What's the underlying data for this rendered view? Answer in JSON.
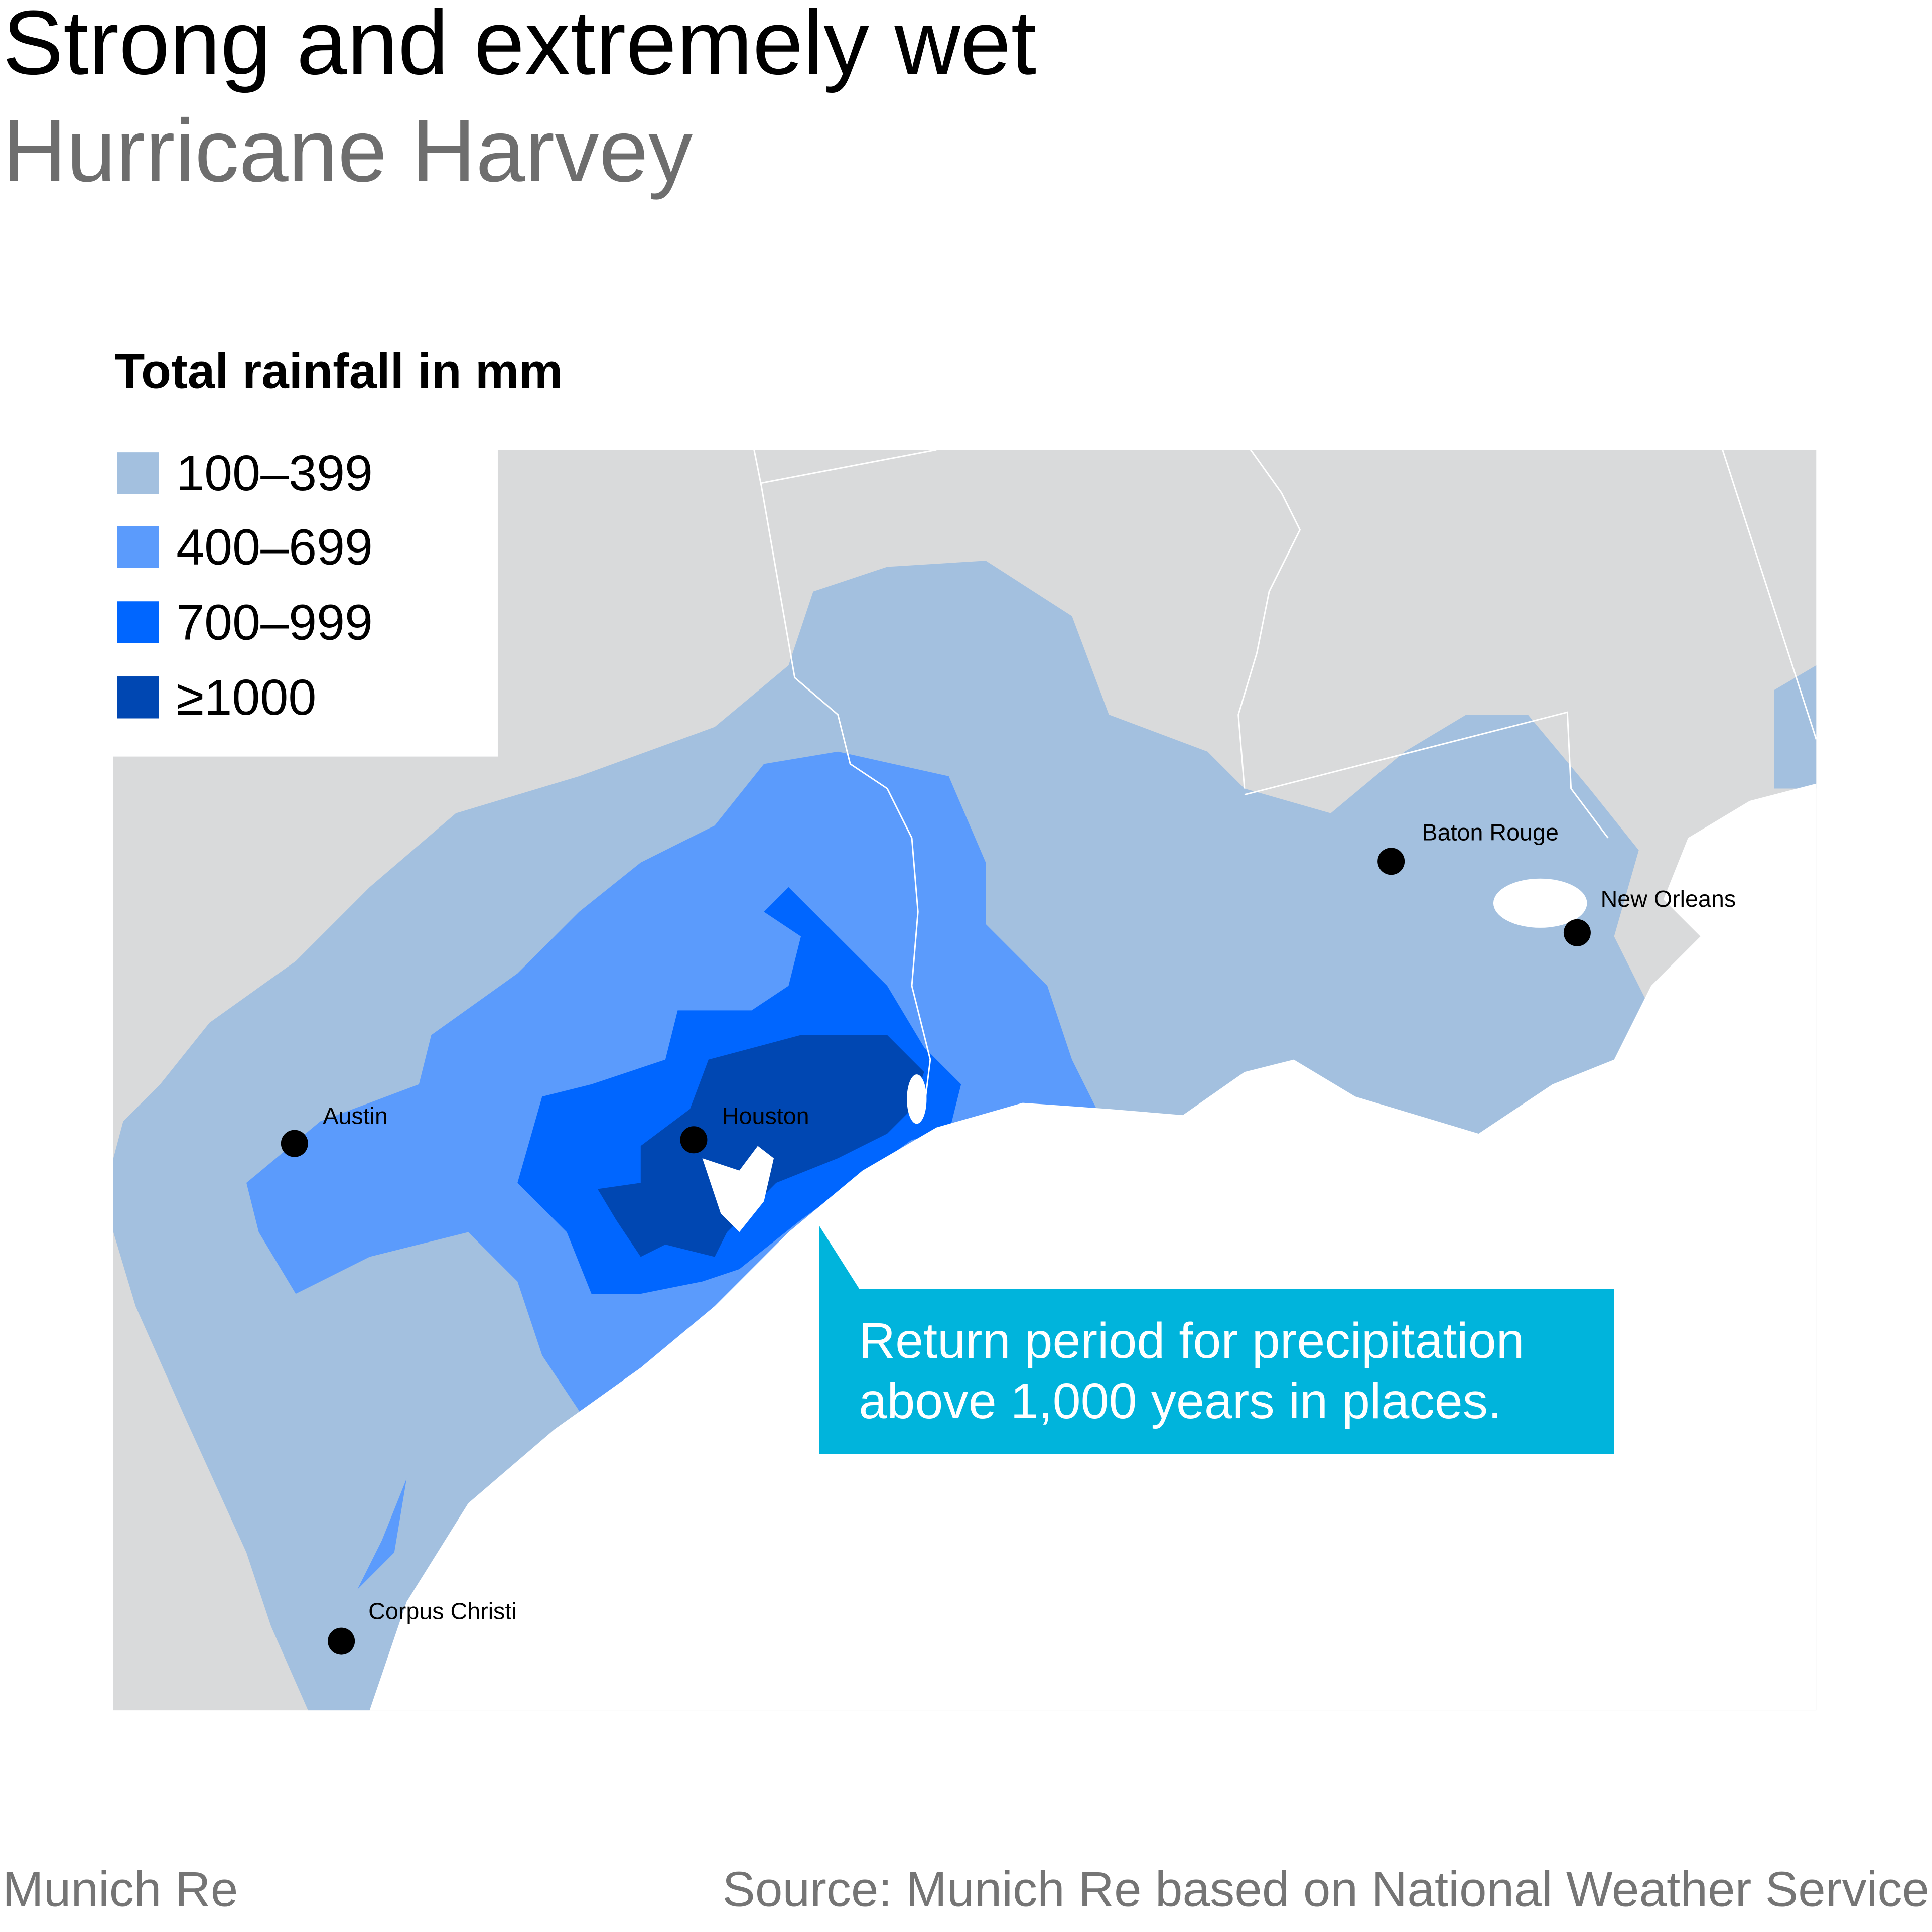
{
  "title": "Strong and extremely wet",
  "subtitle": "Hurricane Harvey",
  "legend": {
    "title": "Total rainfall in mm",
    "items": [
      {
        "label": "100–399",
        "color": "#a3c0df"
      },
      {
        "label": "400–699",
        "color": "#5b9bfc"
      },
      {
        "label": "700–999",
        "color": "#0066ff"
      },
      {
        "label": "≥1000",
        "color": "#0047b2"
      }
    ]
  },
  "map": {
    "land_color": "#d9dadb",
    "cities": [
      {
        "name": "Austin"
      },
      {
        "name": "Houston"
      },
      {
        "name": "Corpus Christi"
      },
      {
        "name": "Baton Rouge"
      },
      {
        "name": "New Orleans"
      }
    ]
  },
  "callout": {
    "text": "Return period for precipitation above 1,000 years in places.",
    "color": "#00b4dc"
  },
  "footer": {
    "brand": "Munich Re",
    "source": "Source: Munich Re based on National Weather Service"
  }
}
